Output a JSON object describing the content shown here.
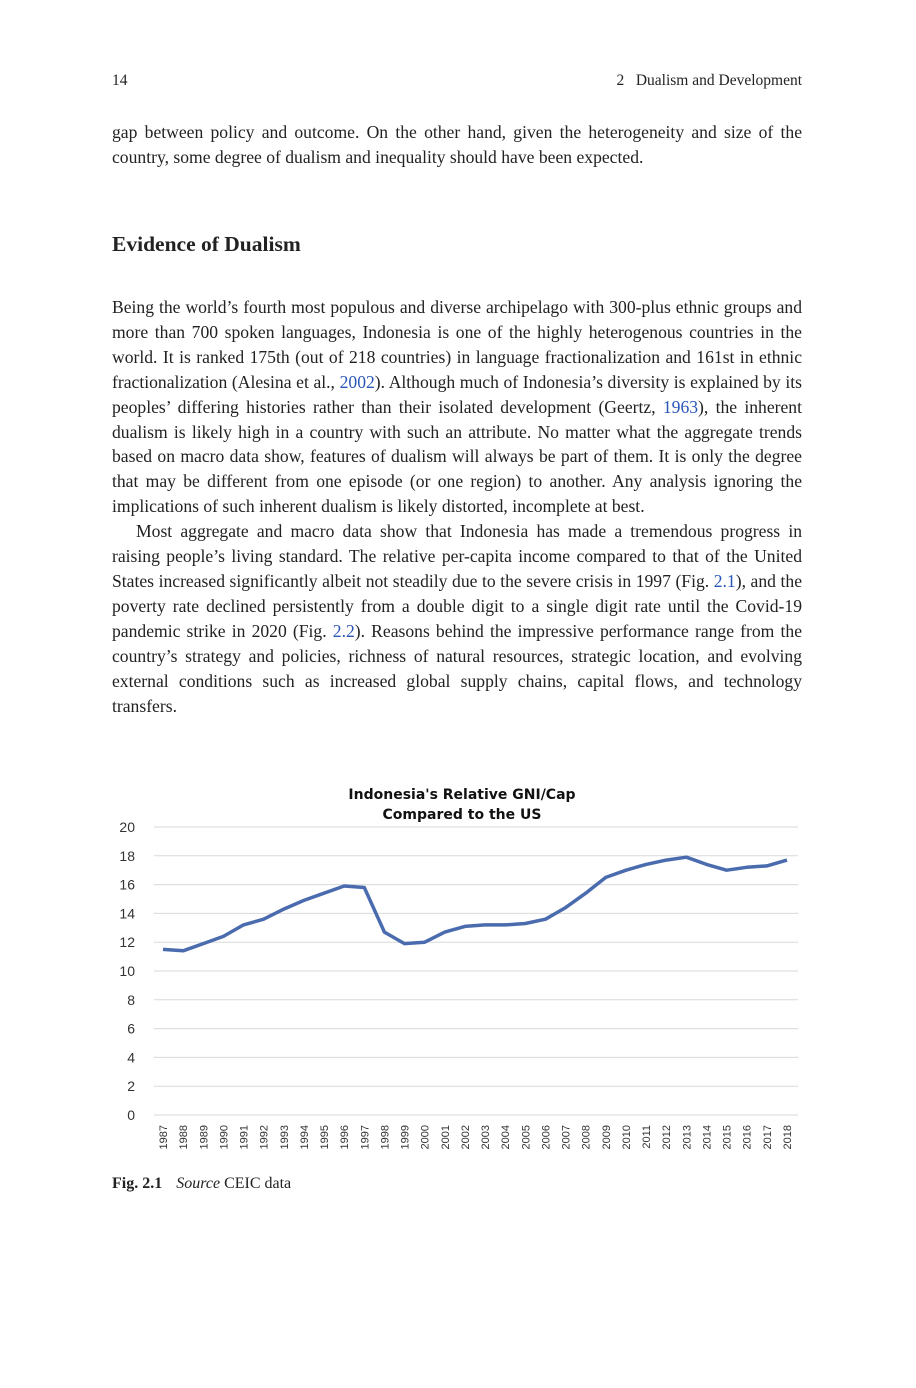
{
  "header": {
    "page_number": "14",
    "running_title": "2   Dualism and Development"
  },
  "intro": {
    "text": "gap between policy and outcome. On the other hand, given the heterogeneity and size of the country, some degree of dualism and inequality should have been expected."
  },
  "section": {
    "heading": "Evidence of Dualism",
    "para1": {
      "t1": "Being the world’s fourth most populous and diverse archipelago with 300-plus ethnic groups and more than 700 spoken languages, Indonesia is one of the highly heterogenous countries in the world. It is ranked 175th (out of 218 countries) in language fractionalization and 161st in ethnic fractionalization (Alesina et al., ",
      "c1": "2002",
      "t2": "). Although much of Indonesia’s diversity is explained by its peoples’ differing histories rather than their isolated development (Geertz, ",
      "c2": "1963",
      "t3": "), the inherent dualism is likely high in a country with such an attribute. No matter what the aggregate trends based on macro data show, features of dualism will always be part of them. It is only the degree that may be different from one episode (or one region) to another. Any analysis ignoring the implications of such inherent dualism is likely distorted, incomplete at best."
    },
    "para2": {
      "t1": "Most aggregate and macro data show that Indonesia has made a tremendous progress in raising people’s living standard. The relative per-capita income compared to that of the United States increased significantly albeit not steadily due to the severe crisis in 1997 (Fig. ",
      "c1": "2.1",
      "t2": "), and the poverty rate declined persistently from a double digit to a single digit rate until the Covid-19 pandemic strike in 2020 (Fig. ",
      "c2": "2.2",
      "t3": "). Reasons behind the impressive performance range from the country’s strategy and policies, richness of natural resources, strategic location, and evolving external conditions such as increased global supply chains, capital flows, and technology transfers."
    }
  },
  "chart_data": {
    "type": "line",
    "title_line1": "Indonesia's Relative GNI/Cap",
    "title_line2": "Compared to the US",
    "x": [
      "1987",
      "1988",
      "1989",
      "1990",
      "1991",
      "1992",
      "1993",
      "1994",
      "1995",
      "1996",
      "1997",
      "1998",
      "1999",
      "2000",
      "2001",
      "2002",
      "2003",
      "2004",
      "2005",
      "2006",
      "2007",
      "2008",
      "2009",
      "2010",
      "2011",
      "2012",
      "2013",
      "2014",
      "2015",
      "2016",
      "2017",
      "2018"
    ],
    "series": [
      {
        "values": [
          11.5,
          11.4,
          11.9,
          12.4,
          13.2,
          13.6,
          14.3,
          14.9,
          15.4,
          15.9,
          15.8,
          12.7,
          11.9,
          12.0,
          12.7,
          13.1,
          13.2,
          13.2,
          13.3,
          13.6,
          14.4,
          15.4,
          16.5,
          17.0,
          17.4,
          17.7,
          17.9,
          17.4,
          17.0,
          17.2,
          17.3,
          17.7
        ],
        "color": "#4a6cae"
      }
    ],
    "y_ticks": [
      "0",
      "2",
      "4",
      "6",
      "8",
      "10",
      "12",
      "14",
      "16",
      "18",
      "20"
    ],
    "ylim": [
      0,
      20
    ],
    "grid": true,
    "legend": "none"
  },
  "caption": {
    "figure": "Fig. 2.1",
    "source_label": "Source",
    "source_text": " CEIC data"
  }
}
